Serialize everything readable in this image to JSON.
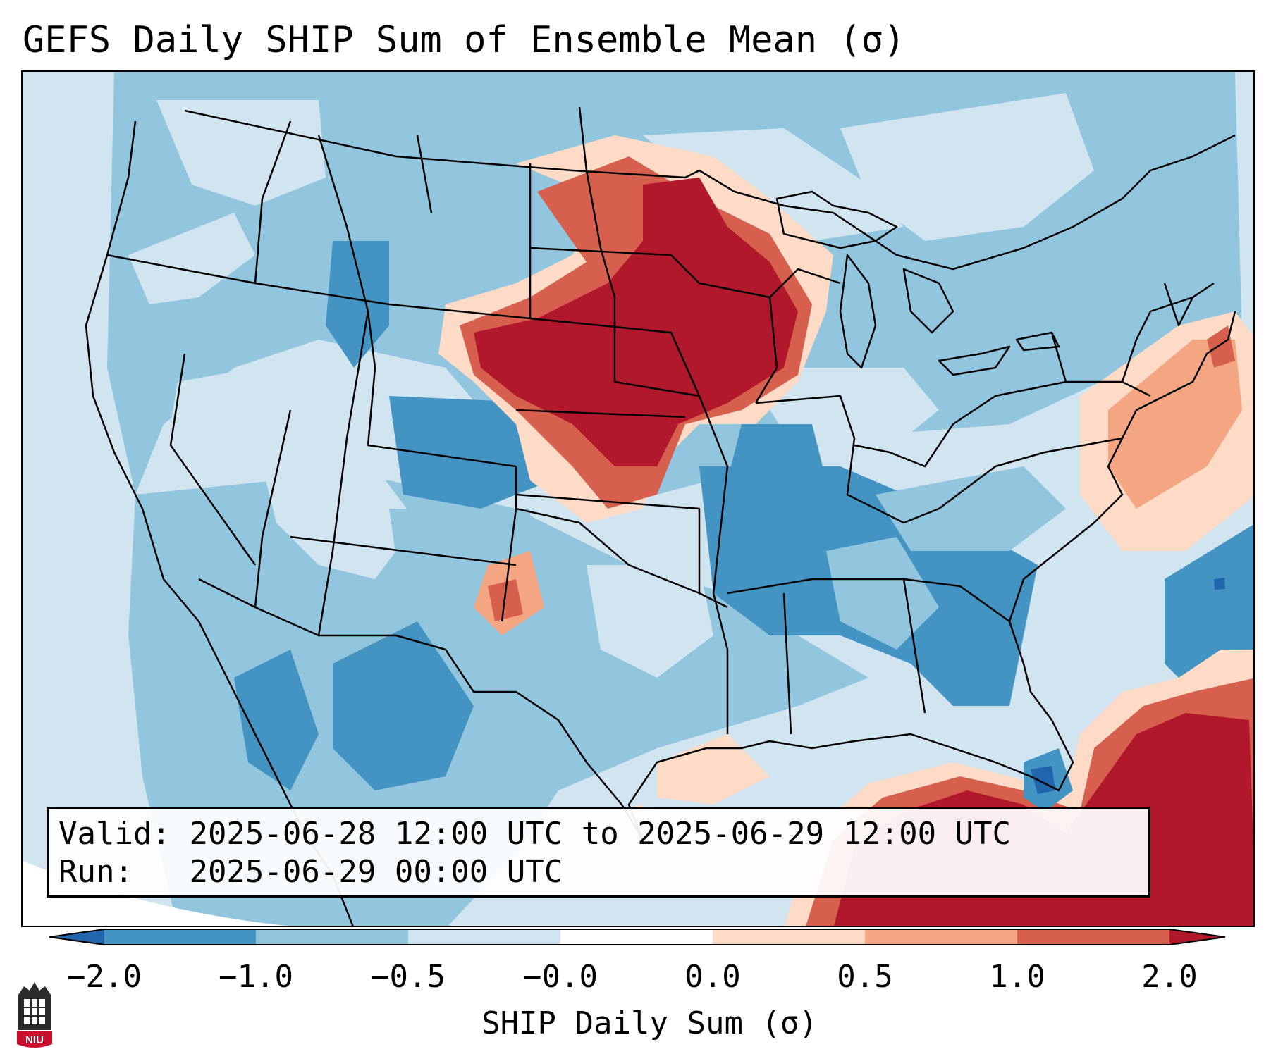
{
  "title": "GEFS Daily SHIP Sum of Ensemble Mean (σ)",
  "info": {
    "valid_label": "Valid:",
    "valid_value": "2025-06-28 12:00 UTC to 2025-06-29 12:00 UTC",
    "run_label": "Run:",
    "run_value": "2025-06-29 00:00 UTC"
  },
  "colorbar": {
    "label": "SHIP Daily Sum (σ)",
    "ticks": [
      "−2.0",
      "−1.0",
      "−0.5",
      "−0.0",
      "0.0",
      "0.5",
      "1.0",
      "2.0"
    ],
    "colors": [
      "#4393c3",
      "#92c5de",
      "#d1e5f0",
      "#fddbc7",
      "#f4a582",
      "#d6604d"
    ],
    "extend_low_color": "#2166ac",
    "extend_high_color": "#b2182b"
  },
  "map": {
    "ocean_color": "#d1e5f0",
    "regions": [
      {
        "name": "northern-plains-upper-midwest",
        "category": "high",
        "color": "#b2182b"
      },
      {
        "name": "gulf-of-mexico-atlantic-south",
        "category": "high",
        "color": "#b2182b"
      },
      {
        "name": "northeast-coast",
        "category": "moderate",
        "color": "#f4a582"
      },
      {
        "name": "rockies-southwest",
        "category": "low",
        "color": "#92c5de"
      },
      {
        "name": "southeast-us",
        "category": "low",
        "color": "#4393c3"
      }
    ]
  },
  "logo": {
    "text": "NIU"
  }
}
